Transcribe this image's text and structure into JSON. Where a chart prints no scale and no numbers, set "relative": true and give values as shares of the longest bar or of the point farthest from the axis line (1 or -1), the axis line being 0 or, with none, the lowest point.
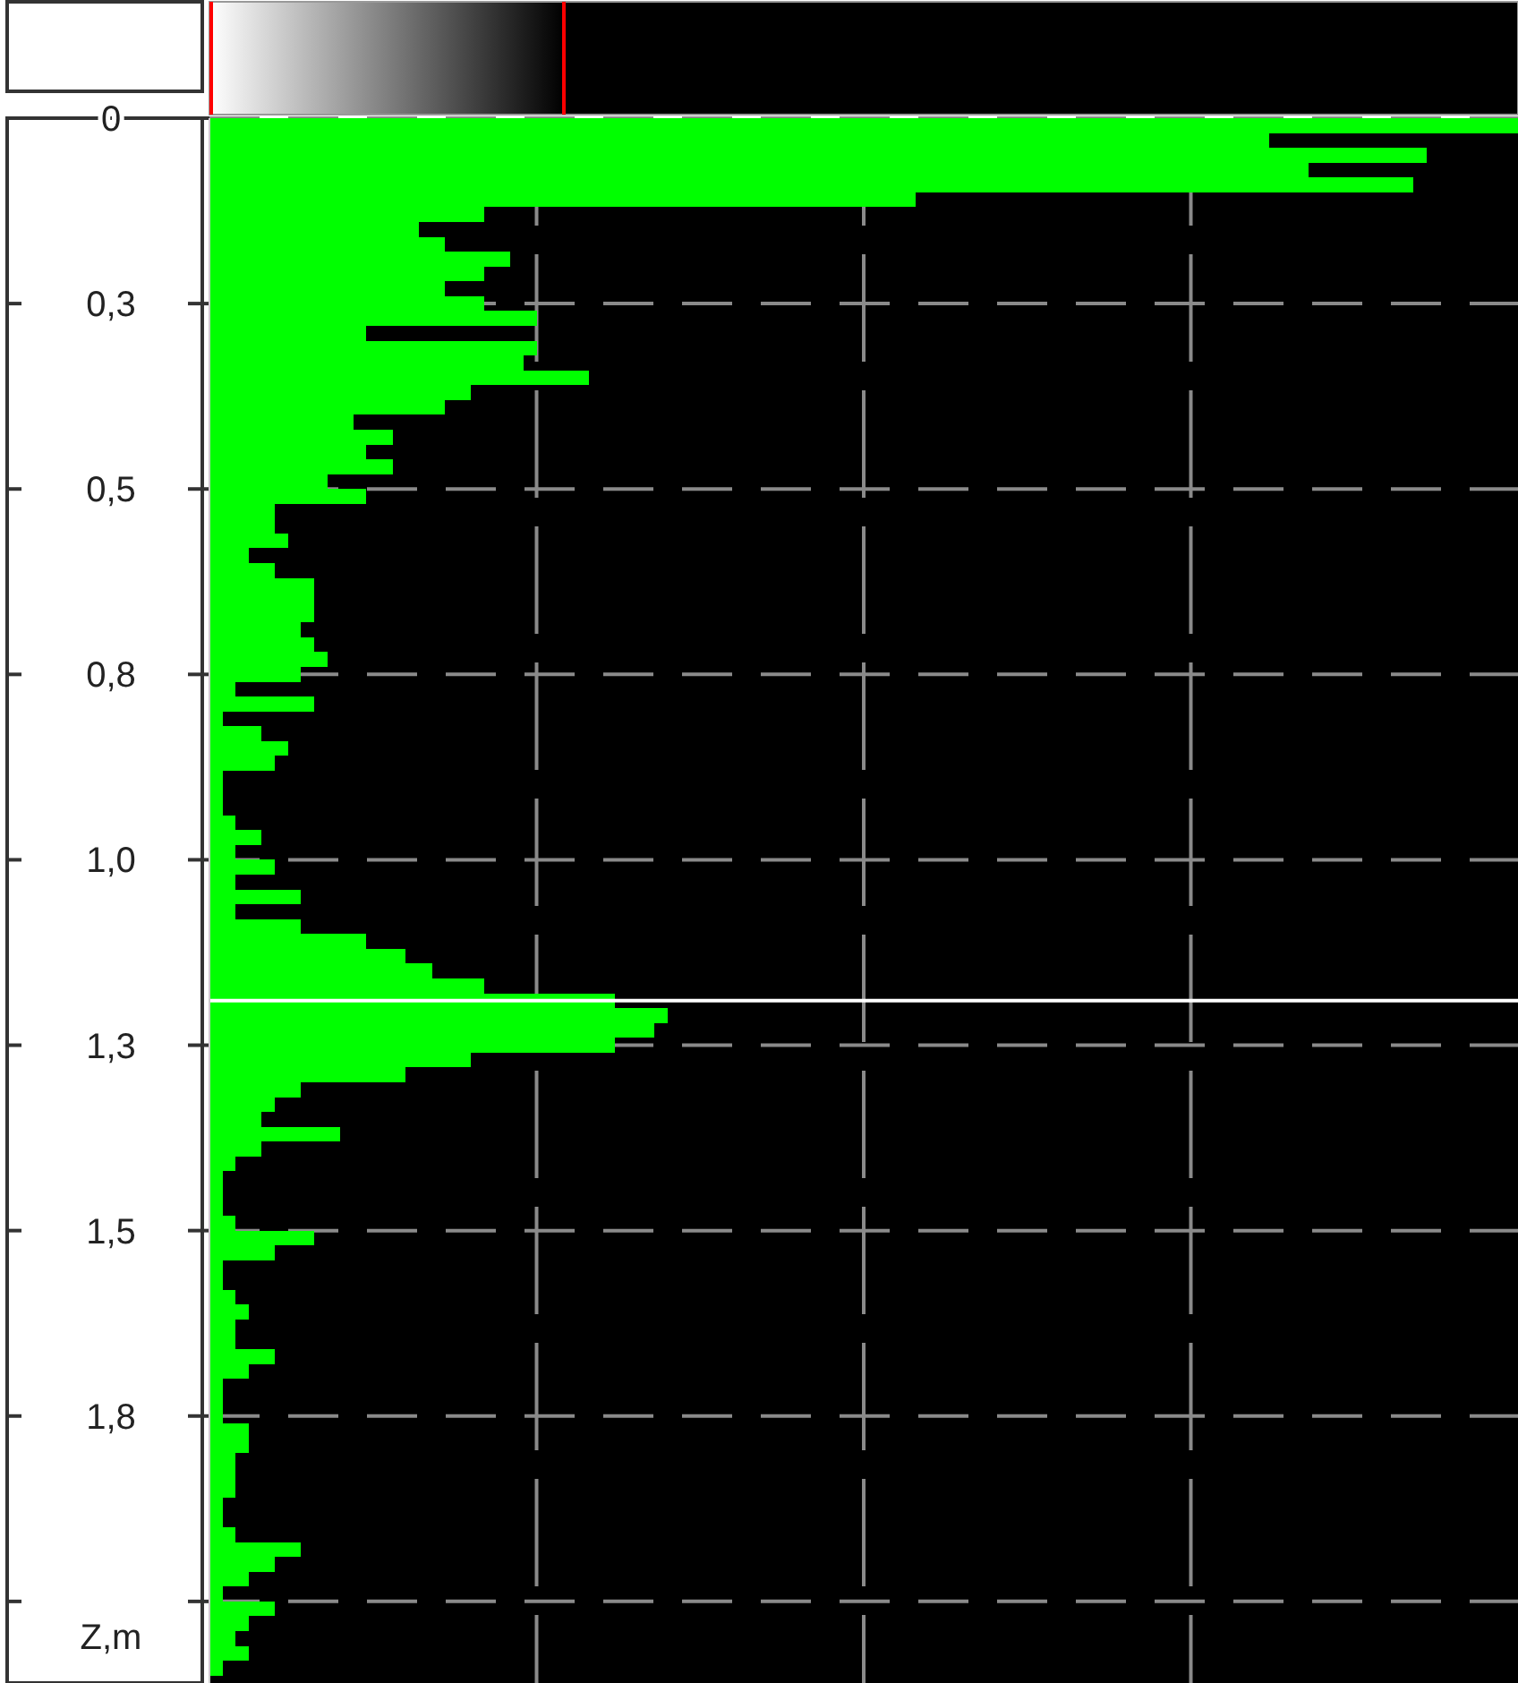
{
  "chart_data": {
    "type": "bar",
    "orientation": "horizontal",
    "relative": true,
    "ylabel": "Z,m",
    "x": [
      0.01,
      0.03,
      0.05,
      0.07,
      0.09,
      0.11,
      0.13,
      0.15,
      0.17,
      0.19,
      0.21,
      0.23,
      0.25,
      0.27,
      0.29,
      0.31,
      0.33,
      0.35,
      0.37,
      0.39,
      0.41,
      0.43,
      0.45,
      0.47,
      0.49,
      0.51,
      0.53,
      0.55,
      0.57,
      0.59,
      0.61,
      0.63,
      0.65,
      0.67,
      0.69,
      0.71,
      0.73,
      0.75,
      0.77,
      0.79,
      0.81,
      0.83,
      0.85,
      0.87,
      0.89,
      0.91,
      0.93,
      0.95,
      0.97,
      0.99,
      1.01,
      1.03,
      1.05,
      1.07,
      1.09,
      1.11,
      1.13,
      1.15,
      1.17,
      1.19,
      1.21,
      1.23,
      1.25,
      1.27,
      1.29,
      1.31,
      1.33,
      1.35,
      1.37,
      1.39,
      1.41,
      1.43,
      1.45,
      1.47,
      1.49,
      1.51,
      1.53,
      1.55,
      1.57,
      1.59,
      1.61,
      1.63,
      1.65,
      1.67,
      1.69,
      1.71,
      1.73,
      1.75,
      1.77,
      1.79,
      1.81,
      1.83,
      1.85,
      1.87,
      1.89,
      1.91,
      1.93,
      1.95,
      1.97,
      1.99,
      2.01,
      2.03,
      2.05,
      2.07,
      2.09
    ],
    "values": [
      1.0,
      0.81,
      0.93,
      0.84,
      0.92,
      0.54,
      0.21,
      0.16,
      0.18,
      0.23,
      0.21,
      0.18,
      0.21,
      0.25,
      0.12,
      0.25,
      0.24,
      0.29,
      0.2,
      0.18,
      0.11,
      0.14,
      0.12,
      0.14,
      0.09,
      0.12,
      0.05,
      0.05,
      0.06,
      0.03,
      0.05,
      0.08,
      0.08,
      0.08,
      0.07,
      0.08,
      0.09,
      0.07,
      0.02,
      0.08,
      0.01,
      0.04,
      0.06,
      0.05,
      0.01,
      0.01,
      0.01,
      0.02,
      0.04,
      0.02,
      0.05,
      0.02,
      0.07,
      0.02,
      0.07,
      0.12,
      0.15,
      0.17,
      0.21,
      0.31,
      0.35,
      0.34,
      0.31,
      0.2,
      0.15,
      0.07,
      0.05,
      0.04,
      0.1,
      0.04,
      0.02,
      0.01,
      0.01,
      0.01,
      0.02,
      0.08,
      0.05,
      0.01,
      0.01,
      0.02,
      0.03,
      0.02,
      0.02,
      0.05,
      0.03,
      0.01,
      0.01,
      0.01,
      0.03,
      0.03,
      0.02,
      0.02,
      0.02,
      0.01,
      0.01,
      0.02,
      0.07,
      0.05,
      0.03,
      0.01,
      0.05,
      0.03,
      0.02,
      0.03,
      0.01
    ],
    "color": "#00ff00",
    "ylim": [
      2.11,
      0
    ],
    "yticks": [
      0,
      {
        "value": 0.25,
        "label": "0,3"
      },
      {
        "value": 0.5,
        "label": "0,5"
      },
      {
        "value": 0.75,
        "label": "0,8"
      },
      {
        "value": 1,
        "label": "1,0"
      },
      {
        "value": 1.25,
        "label": "1,3"
      },
      {
        "value": 1.5,
        "label": "1,5"
      },
      {
        "value": 1.75,
        "label": "1,8"
      },
      {
        "value": 2,
        "label": null
      }
    ],
    "grid": true,
    "ref_lines": [
      {
        "axis": "y",
        "value": 1.19,
        "color": "#ffffff"
      }
    ]
  }
}
